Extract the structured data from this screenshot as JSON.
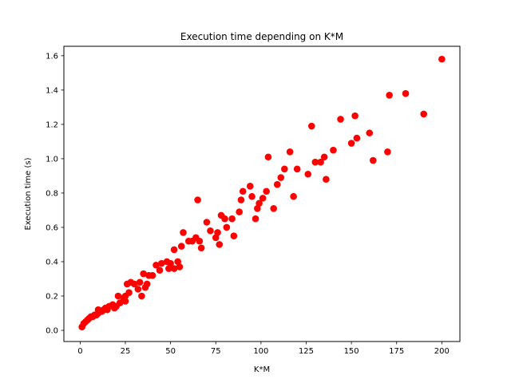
{
  "chart_data": {
    "type": "scatter",
    "title": "Execution time depending on K*M",
    "xlabel": "K*M",
    "ylabel": "Execution time (s)",
    "xlim": [
      -9,
      210
    ],
    "ylim": [
      -0.065,
      1.655
    ],
    "xticks": [
      0,
      25,
      50,
      75,
      100,
      125,
      150,
      175,
      200
    ],
    "xtick_labels": [
      "0",
      "25",
      "50",
      "75",
      "100",
      "125",
      "150",
      "175",
      "200"
    ],
    "yticks": [
      0.0,
      0.2,
      0.4,
      0.6,
      0.8,
      1.0,
      1.2,
      1.4,
      1.6
    ],
    "ytick_labels": [
      "0.0",
      "0.2",
      "0.4",
      "0.6",
      "0.8",
      "1.0",
      "1.2",
      "1.4",
      "1.6"
    ],
    "grid": false,
    "marker_color": "#ff0000",
    "points": [
      [
        1,
        0.02
      ],
      [
        2,
        0.04
      ],
      [
        3,
        0.05
      ],
      [
        4,
        0.06
      ],
      [
        5,
        0.07
      ],
      [
        6,
        0.08
      ],
      [
        7,
        0.08
      ],
      [
        8,
        0.09
      ],
      [
        9,
        0.09
      ],
      [
        10,
        0.1
      ],
      [
        10,
        0.12
      ],
      [
        12,
        0.11
      ],
      [
        13,
        0.12
      ],
      [
        14,
        0.13
      ],
      [
        15,
        0.12
      ],
      [
        16,
        0.14
      ],
      [
        18,
        0.15
      ],
      [
        19,
        0.13
      ],
      [
        20,
        0.14
      ],
      [
        21,
        0.2
      ],
      [
        22,
        0.16
      ],
      [
        24,
        0.19
      ],
      [
        25,
        0.17
      ],
      [
        25,
        0.2
      ],
      [
        26,
        0.27
      ],
      [
        27,
        0.22
      ],
      [
        28,
        0.28
      ],
      [
        30,
        0.27
      ],
      [
        32,
        0.24
      ],
      [
        33,
        0.28
      ],
      [
        34,
        0.2
      ],
      [
        35,
        0.33
      ],
      [
        36,
        0.25
      ],
      [
        37,
        0.27
      ],
      [
        38,
        0.32
      ],
      [
        40,
        0.32
      ],
      [
        42,
        0.38
      ],
      [
        44,
        0.35
      ],
      [
        45,
        0.39
      ],
      [
        48,
        0.4
      ],
      [
        49,
        0.36
      ],
      [
        50,
        0.39
      ],
      [
        52,
        0.47
      ],
      [
        52,
        0.36
      ],
      [
        54,
        0.4
      ],
      [
        55,
        0.37
      ],
      [
        56,
        0.49
      ],
      [
        57,
        0.57
      ],
      [
        60,
        0.52
      ],
      [
        62,
        0.52
      ],
      [
        64,
        0.54
      ],
      [
        65,
        0.76
      ],
      [
        66,
        0.52
      ],
      [
        67,
        0.48
      ],
      [
        70,
        0.63
      ],
      [
        72,
        0.58
      ],
      [
        75,
        0.54
      ],
      [
        76,
        0.57
      ],
      [
        77,
        0.5
      ],
      [
        78,
        0.67
      ],
      [
        80,
        0.65
      ],
      [
        81,
        0.6
      ],
      [
        84,
        0.65
      ],
      [
        85,
        0.55
      ],
      [
        88,
        0.69
      ],
      [
        89,
        0.76
      ],
      [
        90,
        0.81
      ],
      [
        94,
        0.84
      ],
      [
        95,
        0.78
      ],
      [
        97,
        0.65
      ],
      [
        98,
        0.71
      ],
      [
        99,
        0.74
      ],
      [
        101,
        0.77
      ],
      [
        103,
        0.81
      ],
      [
        104,
        1.01
      ],
      [
        107,
        0.71
      ],
      [
        109,
        0.85
      ],
      [
        111,
        0.89
      ],
      [
        113,
        0.94
      ],
      [
        116,
        1.04
      ],
      [
        118,
        0.78
      ],
      [
        120,
        0.94
      ],
      [
        126,
        0.91
      ],
      [
        128,
        1.19
      ],
      [
        130,
        0.98
      ],
      [
        133,
        0.98
      ],
      [
        135,
        1.01
      ],
      [
        136,
        0.88
      ],
      [
        140,
        1.05
      ],
      [
        144,
        1.23
      ],
      [
        150,
        1.09
      ],
      [
        152,
        1.25
      ],
      [
        153,
        1.12
      ],
      [
        160,
        1.15
      ],
      [
        162,
        0.99
      ],
      [
        170,
        1.04
      ],
      [
        171,
        1.37
      ],
      [
        180,
        1.38
      ],
      [
        190,
        1.26
      ],
      [
        200,
        1.58
      ]
    ]
  }
}
